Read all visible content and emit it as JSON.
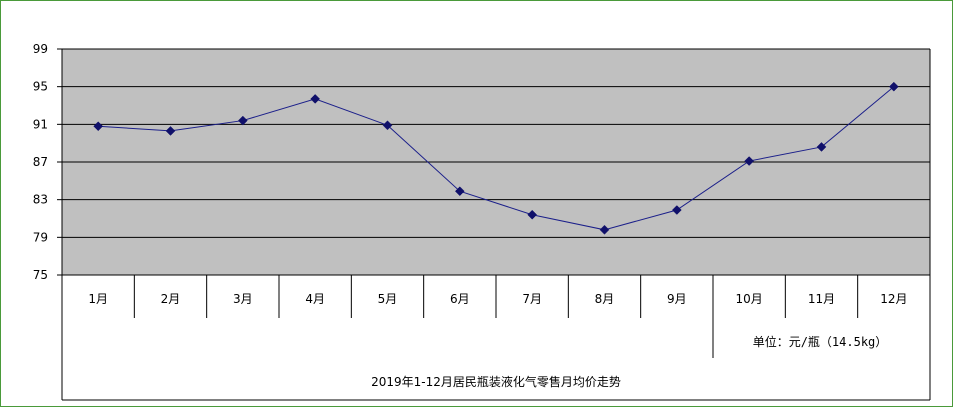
{
  "chart_data": {
    "type": "line",
    "title": "",
    "xlabel": "",
    "ylabel": "",
    "categories": [
      "1月",
      "2月",
      "3月",
      "4月",
      "5月",
      "6月",
      "7月",
      "8月",
      "9月",
      "10月",
      "11月",
      "12月"
    ],
    "series": [
      {
        "values": [
          90.8,
          90.3,
          91.4,
          93.7,
          90.9,
          83.9,
          81.4,
          79.8,
          81.9,
          87.1,
          88.6,
          95.0
        ]
      }
    ],
    "ylim": [
      75,
      99
    ],
    "yticks": [
      75,
      79,
      83,
      87,
      91,
      95,
      99
    ],
    "ytick_labels": [
      "75",
      "79",
      "83",
      "87",
      "91",
      "95",
      "99"
    ],
    "grid": true,
    "legend": "none",
    "unit_note": "单位：元/瓶（14.5kg）",
    "caption": "2019年1-12月居民瓶装液化气零售月均价走势",
    "colors": {
      "border": "#4a9a3a",
      "plot_bg": "#c0c0c0",
      "line": "#1b1f8a",
      "marker": "#10106a",
      "grid": "#000000"
    }
  }
}
